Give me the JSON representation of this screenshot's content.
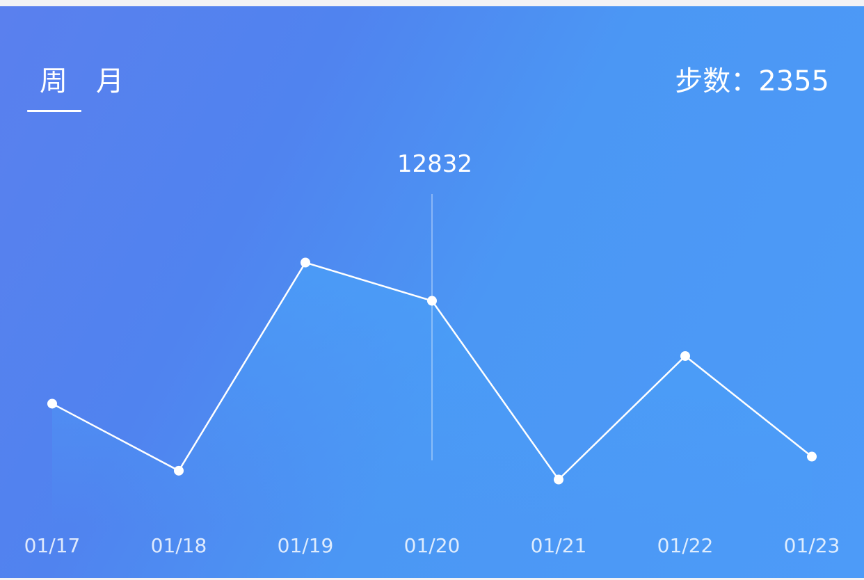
{
  "tabs": {
    "week_label": "周",
    "month_label": "月"
  },
  "summary": {
    "steps_text": "步数：2355"
  },
  "colors": {
    "line": "#ffffff",
    "background_start": "#5a80ee",
    "background_end": "#4d9bf8"
  },
  "chart_data": {
    "type": "line",
    "categories": [
      "01/17",
      "01/18",
      "01/19",
      "01/20",
      "01/21",
      "01/22",
      "01/23"
    ],
    "series": [
      {
        "values": [
          7000,
          3200,
          15000,
          12832,
          2700,
          9700,
          4000
        ]
      }
    ],
    "selected_index": 3,
    "tooltip_value": "12832",
    "ylim": [
      0,
      22000
    ],
    "grid": false
  }
}
